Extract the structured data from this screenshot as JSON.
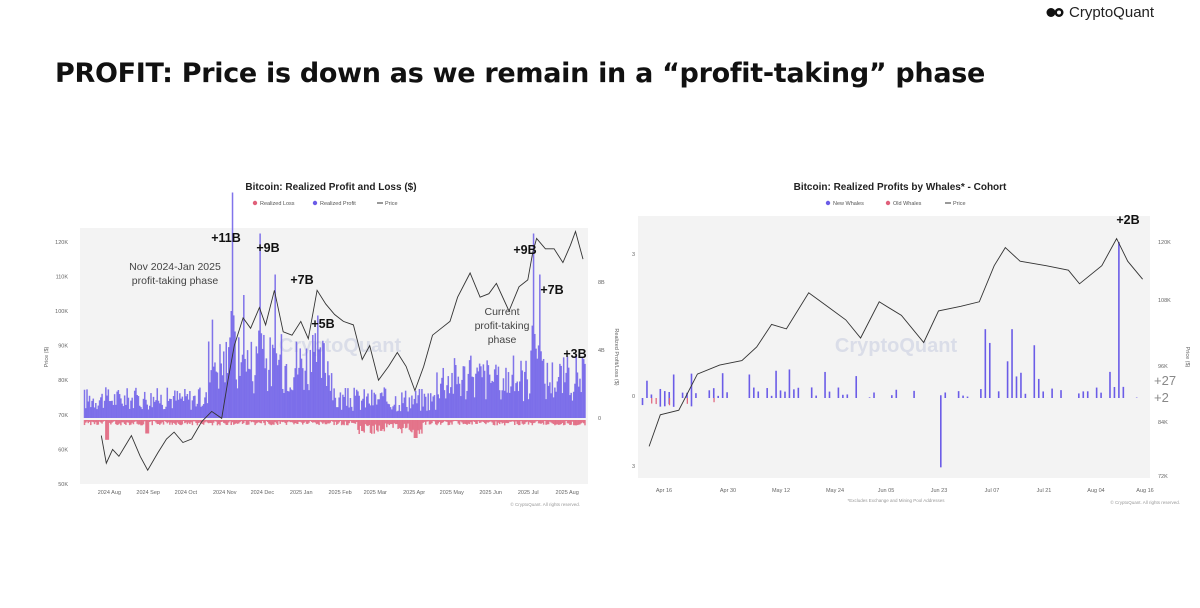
{
  "brand": {
    "name": "CryptoQuant"
  },
  "title": "PROFIT: Price is down as we remain in a “profit-taking” phase",
  "chart_data": [
    {
      "type": "bar",
      "title": "Bitcoin: Realized Profit and Loss ($)",
      "legend": [
        "Realized Loss",
        "Realized Profit",
        "Price"
      ],
      "legend_placement": "top-center",
      "colors": {
        "loss": "#e0607a",
        "profit": "#6b5ce7",
        "price": "#333333"
      },
      "ylabel_left": "Price ($)",
      "ylabel_right": "Realized Profit/Loss ($)",
      "left_ticks": [
        "50K",
        "60K",
        "70K",
        "80K",
        "90K",
        "100K",
        "110K",
        "120K"
      ],
      "right_ticks": [
        "0",
        "4B",
        "8B"
      ],
      "x_ticks": [
        "2024 Aug",
        "2024 Sep",
        "2024 Oct",
        "2024 Nov",
        "2024 Dec",
        "2025 Jan",
        "2025 Feb",
        "2025 Mar",
        "2025 Apr",
        "2025 May",
        "2025 Jun",
        "2025 Jul",
        "2025 Aug"
      ],
      "watermark": "CryptoQuant",
      "footnote": "© CryptoQuant. All rights reserved.",
      "price": [
        [
          "2024-08-01",
          64
        ],
        [
          "2024-08-05",
          56
        ],
        [
          "2024-08-10",
          60
        ],
        [
          "2024-08-15",
          58
        ],
        [
          "2024-08-20",
          61
        ],
        [
          "2024-08-25",
          64
        ],
        [
          "2024-09-01",
          58
        ],
        [
          "2024-09-07",
          54
        ],
        [
          "2024-09-15",
          59
        ],
        [
          "2024-09-22",
          63
        ],
        [
          "2024-09-28",
          65
        ],
        [
          "2024-10-05",
          62
        ],
        [
          "2024-10-12",
          63
        ],
        [
          "2024-10-20",
          68
        ],
        [
          "2024-10-28",
          71
        ],
        [
          "2024-11-05",
          69
        ],
        [
          "2024-11-10",
          80
        ],
        [
          "2024-11-15",
          90
        ],
        [
          "2024-11-22",
          98
        ],
        [
          "2024-11-28",
          95
        ],
        [
          "2024-12-05",
          101
        ],
        [
          "2024-12-10",
          96
        ],
        [
          "2024-12-17",
          106
        ],
        [
          "2024-12-24",
          94
        ],
        [
          "2024-12-31",
          93
        ],
        [
          "2025-01-07",
          97
        ],
        [
          "2025-01-13",
          92
        ],
        [
          "2025-01-20",
          106
        ],
        [
          "2025-01-27",
          102
        ],
        [
          "2025-02-03",
          99
        ],
        [
          "2025-02-10",
          97
        ],
        [
          "2025-02-18",
          96
        ],
        [
          "2025-02-25",
          86
        ],
        [
          "2025-03-03",
          90
        ],
        [
          "2025-03-10",
          80
        ],
        [
          "2025-03-18",
          84
        ],
        [
          "2025-03-25",
          88
        ],
        [
          "2025-04-01",
          84
        ],
        [
          "2025-04-08",
          77
        ],
        [
          "2025-04-15",
          84
        ],
        [
          "2025-04-22",
          93
        ],
        [
          "2025-04-29",
          95
        ],
        [
          "2025-05-06",
          97
        ],
        [
          "2025-05-12",
          104
        ],
        [
          "2025-05-22",
          111
        ],
        [
          "2025-05-30",
          104
        ],
        [
          "2025-06-06",
          105
        ],
        [
          "2025-06-12",
          108
        ],
        [
          "2025-06-22",
          100
        ],
        [
          "2025-06-30",
          107
        ],
        [
          "2025-07-07",
          109
        ],
        [
          "2025-07-11",
          117
        ],
        [
          "2025-07-14",
          121
        ],
        [
          "2025-07-21",
          118
        ],
        [
          "2025-07-28",
          118
        ],
        [
          "2025-08-04",
          114
        ],
        [
          "2025-08-10",
          119
        ],
        [
          "2025-08-14",
          123
        ],
        [
          "2025-08-20",
          115
        ]
      ],
      "annotations": [
        {
          "label": "+11B",
          "x": "2024-11-13"
        },
        {
          "label": "+9B",
          "x": "2024-12-05"
        },
        {
          "label": "+7B",
          "x": "2024-12-17"
        },
        {
          "label": "+5B",
          "x": "2025-01-20"
        },
        {
          "label": "+9B",
          "x": "2025-07-11"
        },
        {
          "label": "+7B",
          "x": "2025-07-16"
        },
        {
          "label": "+3B",
          "x": "2025-08-14"
        }
      ],
      "notes": [
        {
          "lines": [
            "Nov 2024-Jan 2025",
            "profit-taking phase"
          ]
        },
        {
          "lines": [
            "Current",
            "profit-taking",
            "phase"
          ]
        }
      ]
    },
    {
      "type": "bar",
      "title": "Bitcoin: Realized Profits by Whales* - Cohort",
      "legend": [
        "New Whales",
        "Old Whales",
        "Price"
      ],
      "legend_placement": "top-center",
      "colors": {
        "new": "#6b5ce7",
        "old": "#e0607a",
        "price": "#333333"
      },
      "ylabel_right": "Price ($)",
      "left_ticks": [
        "3",
        "0",
        "3"
      ],
      "right_ticks": [
        "72K",
        "84K",
        "96K",
        "108K",
        "120K"
      ],
      "x_ticks": [
        "Apr 16",
        "Apr 30",
        "May 12",
        "May 24",
        "Jun 05",
        "Jun 23",
        "Jul 07",
        "Jul 21",
        "Aug 04",
        "Aug 16"
      ],
      "watermark": "CryptoQuant",
      "footnote": "*Excludes Exchange and Mining Pool Addresses",
      "footnote2": "© CryptoQuant. All rights reserved.",
      "price": [
        [
          "2025-04-09",
          77
        ],
        [
          "2025-04-12",
          84
        ],
        [
          "2025-04-17",
          85
        ],
        [
          "2025-04-22",
          93
        ],
        [
          "2025-04-28",
          95
        ],
        [
          "2025-05-04",
          96
        ],
        [
          "2025-05-08",
          99
        ],
        [
          "2025-05-12",
          104
        ],
        [
          "2025-05-16",
          103
        ],
        [
          "2025-05-22",
          111
        ],
        [
          "2025-05-27",
          108
        ],
        [
          "2025-06-01",
          105
        ],
        [
          "2025-06-05",
          101
        ],
        [
          "2025-06-10",
          109
        ],
        [
          "2025-06-16",
          106
        ],
        [
          "2025-06-22",
          100
        ],
        [
          "2025-06-26",
          107
        ],
        [
          "2025-07-02",
          108
        ],
        [
          "2025-07-07",
          109
        ],
        [
          "2025-07-11",
          117
        ],
        [
          "2025-07-14",
          121
        ],
        [
          "2025-07-18",
          118
        ],
        [
          "2025-07-25",
          117
        ],
        [
          "2025-07-31",
          116
        ],
        [
          "2025-08-03",
          113
        ],
        [
          "2025-08-09",
          117
        ],
        [
          "2025-08-13",
          123
        ],
        [
          "2025-08-16",
          118
        ],
        [
          "2025-08-20",
          114
        ]
      ],
      "annotations": [
        {
          "label": "+2B",
          "x": "2025-08-14"
        }
      ],
      "edge_labels": [
        "+27",
        "+2"
      ]
    }
  ]
}
